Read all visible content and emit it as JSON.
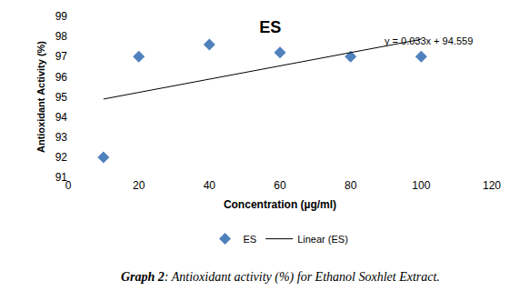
{
  "chart_data": {
    "type": "scatter",
    "title": "ES",
    "x_label": "Concentration (µg/ml)",
    "y_label": "Antioxidant Activity (%)",
    "annotations": [
      "y = 0.033x + 94.559"
    ],
    "caption": [
      "Graph 2",
      ": Antioxidant activity (%) for Ethanol Soxhlet Extract."
    ],
    "series": [
      {
        "name": "ES",
        "type": "scatter",
        "marker": "diamond",
        "color": "#4f81bd",
        "x": [
          10,
          20,
          40,
          60,
          80,
          100
        ],
        "values": [
          92.0,
          97.0,
          97.6,
          97.2,
          97.0,
          97.0
        ]
      },
      {
        "name": "Linear (ES)",
        "type": "line",
        "line_style": "solid",
        "color": "#000000",
        "x": [
          10,
          100
        ],
        "values": [
          94.89,
          97.86
        ]
      }
    ],
    "xlim": [
      0,
      120
    ],
    "xticks": [
      0,
      20,
      40,
      60,
      80,
      100,
      120
    ],
    "ylim": [
      91,
      99
    ],
    "yticks": [
      91,
      92,
      93,
      94,
      95,
      96,
      97,
      98,
      99
    ],
    "grid": false,
    "legend": "bottom"
  }
}
